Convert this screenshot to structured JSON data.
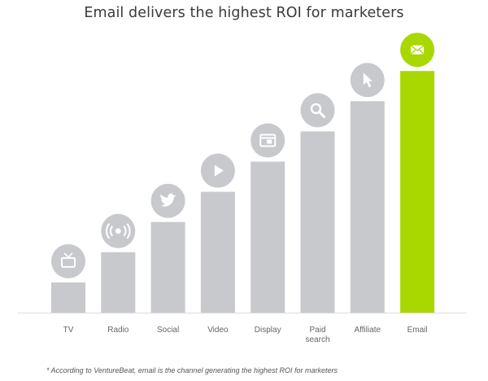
{
  "chart_data": {
    "type": "bar",
    "title": "Email delivers the highest ROI for marketers",
    "categories": [
      "TV",
      "Radio",
      "Social",
      "Video",
      "Display",
      "Paid search",
      "Affiliate",
      "Email"
    ],
    "category_lines": [
      [
        "TV"
      ],
      [
        "Radio"
      ],
      [
        "Social"
      ],
      [
        "Video"
      ],
      [
        "Display"
      ],
      [
        "Paid",
        "search"
      ],
      [
        "Affiliate"
      ],
      [
        "Email"
      ]
    ],
    "values": [
      1,
      2,
      3,
      4,
      5,
      6,
      7,
      8
    ],
    "icons": [
      "tv-icon",
      "radio-icon",
      "twitter-icon",
      "play-icon",
      "display-icon",
      "search-icon",
      "cursor-icon",
      "envelope-icon"
    ],
    "highlight_index": 7,
    "ylim": [
      0,
      8
    ],
    "grid": false,
    "footnote": "* According to VentureBeat, email is the channel generating the highest ROI for marketers"
  },
  "colors": {
    "bar": "#c7c9cd",
    "highlight": "#a9d800",
    "icon_bg": "#c7c9cd",
    "icon_fg": "#ffffff",
    "baseline": "#dcdcdc"
  }
}
